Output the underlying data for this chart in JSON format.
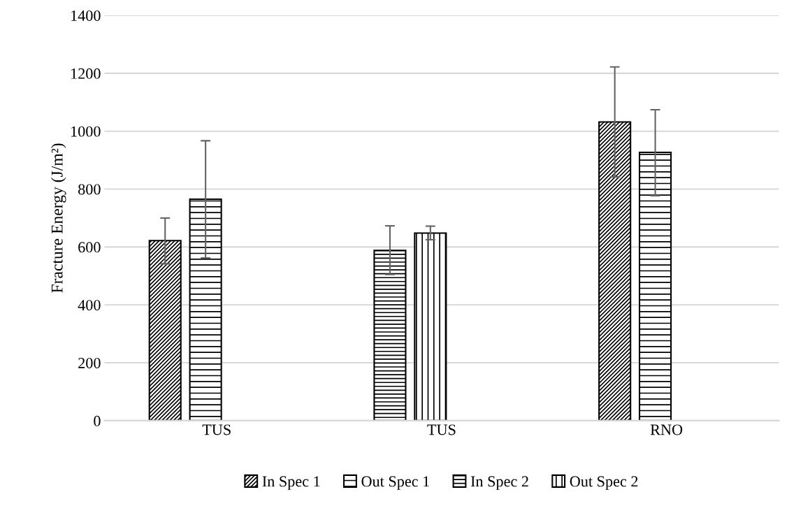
{
  "chart_data": {
    "type": "bar",
    "ylabel": "Fracture Energy (J/m²)",
    "categories": [
      "TUS",
      "TUS",
      "RNO"
    ],
    "series": [
      {
        "name": "In Spec 1",
        "color": "#000000",
        "values": [
          622,
          null,
          1032
        ],
        "errors": [
          [
            542,
            700
          ],
          null,
          [
            842,
            1222
          ]
        ]
      },
      {
        "name": "Out Spec 1",
        "color": "#000000",
        "values": [
          765,
          null,
          927
        ],
        "errors": [
          [
            562,
            967
          ],
          null,
          [
            777,
            1074
          ]
        ]
      },
      {
        "name": "In Spec 2",
        "color": "#000000",
        "values": [
          null,
          588,
          null
        ],
        "errors": [
          null,
          [
            505,
            673
          ],
          null
        ]
      },
      {
        "name": "Out Spec 2",
        "color": "#000000",
        "values": [
          null,
          648,
          null
        ],
        "errors": [
          null,
          [
            625,
            672
          ],
          null
        ]
      }
    ],
    "ylim": [
      0,
      1400
    ],
    "yticks": [
      0,
      200,
      400,
      600,
      800,
      1000,
      1200,
      1400
    ],
    "grid": "y",
    "legend": "bottom"
  }
}
